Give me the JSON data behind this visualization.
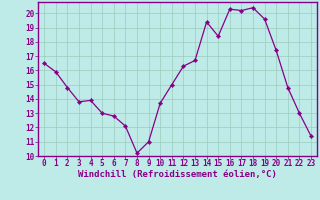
{
  "x": [
    0,
    1,
    2,
    3,
    4,
    5,
    6,
    7,
    8,
    9,
    10,
    11,
    12,
    13,
    14,
    15,
    16,
    17,
    18,
    19,
    20,
    21,
    22,
    23
  ],
  "y": [
    16.5,
    15.9,
    14.8,
    13.8,
    13.9,
    13.0,
    12.8,
    12.1,
    10.2,
    11.0,
    13.7,
    15.0,
    16.3,
    16.7,
    19.4,
    18.4,
    20.3,
    20.2,
    20.4,
    19.6,
    17.4,
    14.8,
    13.0,
    11.4
  ],
  "xlim": [
    -0.5,
    23.5
  ],
  "ylim": [
    10,
    20.8
  ],
  "xticks": [
    0,
    1,
    2,
    3,
    4,
    5,
    6,
    7,
    8,
    9,
    10,
    11,
    12,
    13,
    14,
    15,
    16,
    17,
    18,
    19,
    20,
    21,
    22,
    23
  ],
  "yticks": [
    10,
    11,
    12,
    13,
    14,
    15,
    16,
    17,
    18,
    19,
    20
  ],
  "xlabel": "Windchill (Refroidissement éolien,°C)",
  "line_color": "#880088",
  "marker_color": "#880088",
  "bg_color": "#beeae8",
  "grid_color": "#99ccbb",
  "axis_color": "#880088",
  "tick_color": "#880088",
  "label_color": "#880088",
  "font_size_tick": 5.5,
  "font_size_label": 6.5
}
